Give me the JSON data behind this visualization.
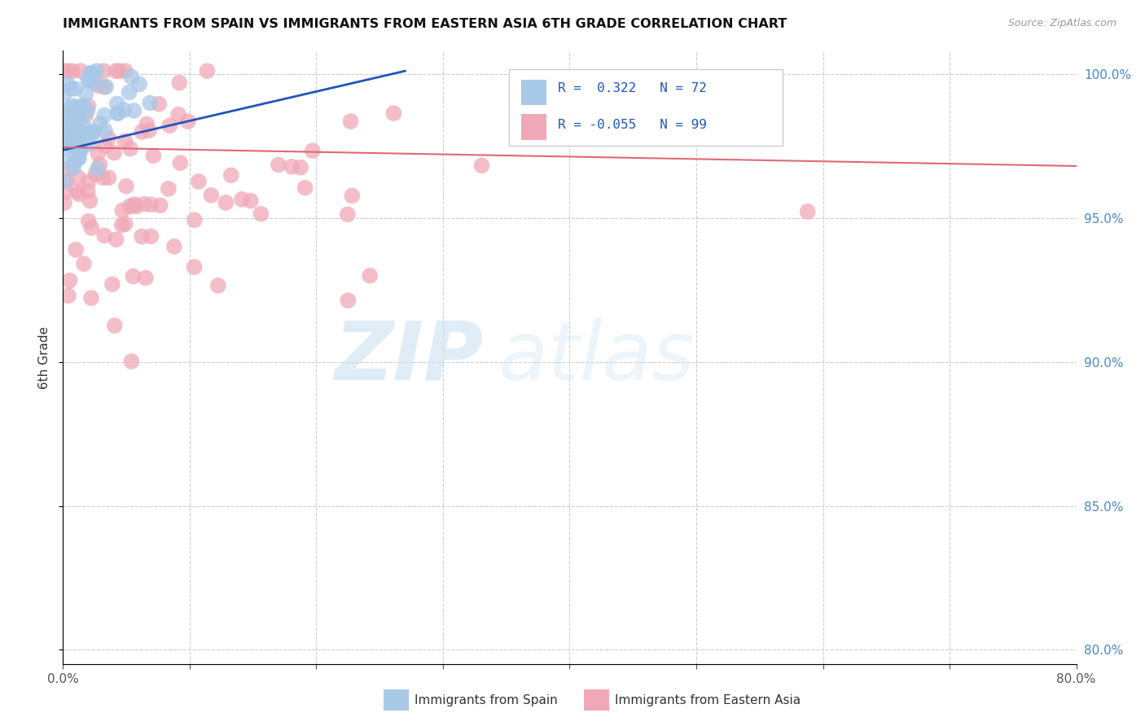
{
  "title": "IMMIGRANTS FROM SPAIN VS IMMIGRANTS FROM EASTERN ASIA 6TH GRADE CORRELATION CHART",
  "source": "Source: ZipAtlas.com",
  "ylabel": "6th Grade",
  "xlim": [
    0.0,
    0.8
  ],
  "ylim": [
    0.795,
    1.008
  ],
  "xtick_positions": [
    0.0,
    0.1,
    0.2,
    0.3,
    0.4,
    0.5,
    0.6,
    0.7,
    0.8
  ],
  "xticklabels": [
    "0.0%",
    "",
    "",
    "",
    "",
    "",
    "",
    "",
    "80.0%"
  ],
  "ytick_positions": [
    0.8,
    0.85,
    0.9,
    0.95,
    1.0
  ],
  "yticklabels": [
    "80.0%",
    "85.0%",
    "90.0%",
    "95.0%",
    "100.0%"
  ],
  "R_blue": 0.322,
  "N_blue": 72,
  "R_pink": -0.055,
  "N_pink": 99,
  "blue_color": "#a8c8e8",
  "pink_color": "#f0a8b8",
  "trendline_blue": "#2255bb",
  "trendline_pink": "#e06878",
  "legend_blue_label": "Immigrants from Spain",
  "legend_pink_label": "Immigrants from Eastern Asia",
  "watermark_zip": "ZIP",
  "watermark_atlas": "atlas",
  "title_fontsize": 11.5,
  "source_fontsize": 9
}
